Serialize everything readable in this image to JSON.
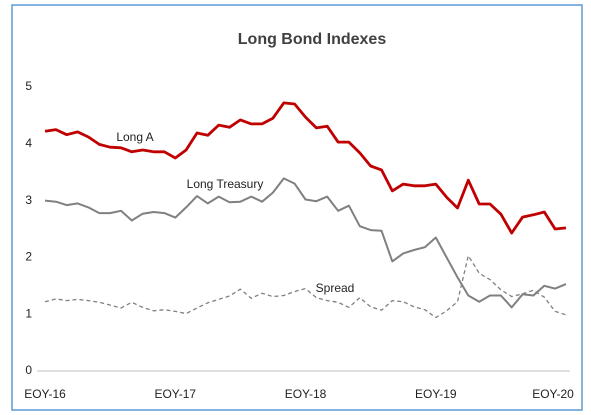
{
  "chart_data": {
    "type": "line",
    "title": "Long Bond Indexes",
    "categories": [
      "EOY-16",
      null,
      null,
      null,
      null,
      null,
      null,
      null,
      null,
      null,
      null,
      null,
      "EOY-17",
      null,
      null,
      null,
      null,
      null,
      null,
      null,
      null,
      null,
      null,
      null,
      "EOY-18",
      null,
      null,
      null,
      null,
      null,
      null,
      null,
      null,
      null,
      null,
      null,
      "EOY-19",
      null,
      null,
      null,
      null,
      null,
      null,
      null,
      null,
      null,
      null,
      null,
      "EOY-20"
    ],
    "series": [
      {
        "name": "Long A",
        "color": "#c00000",
        "style": "solid",
        "values": [
          4.22,
          4.25,
          4.16,
          4.21,
          4.12,
          3.99,
          3.94,
          3.93,
          3.86,
          3.89,
          3.86,
          3.86,
          3.75,
          3.89,
          4.19,
          4.15,
          4.33,
          4.29,
          4.42,
          4.35,
          4.35,
          4.45,
          4.72,
          4.7,
          4.47,
          4.28,
          4.31,
          4.03,
          4.03,
          3.84,
          3.61,
          3.54,
          3.17,
          3.29,
          3.26,
          3.26,
          3.29,
          3.06,
          2.87,
          3.36,
          2.94,
          2.94,
          2.76,
          2.43,
          2.71,
          2.75,
          2.8,
          2.5,
          2.52
        ]
      },
      {
        "name": "Long Treasury",
        "color": "#808080",
        "style": "solid",
        "values": [
          3.0,
          2.98,
          2.92,
          2.95,
          2.88,
          2.78,
          2.78,
          2.82,
          2.65,
          2.77,
          2.8,
          2.78,
          2.7,
          2.88,
          3.08,
          2.95,
          3.07,
          2.97,
          2.98,
          3.07,
          2.98,
          3.14,
          3.39,
          3.3,
          3.02,
          2.99,
          3.07,
          2.82,
          2.91,
          2.55,
          2.48,
          2.47,
          1.93,
          2.07,
          2.13,
          2.18,
          2.35,
          2.0,
          1.65,
          1.33,
          1.22,
          1.33,
          1.33,
          1.12,
          1.35,
          1.33,
          1.5,
          1.45,
          1.53
        ]
      },
      {
        "name": "Spread",
        "color": "#808080",
        "style": "dashed",
        "values": [
          1.22,
          1.27,
          1.24,
          1.26,
          1.24,
          1.21,
          1.16,
          1.11,
          1.21,
          1.12,
          1.06,
          1.08,
          1.05,
          1.01,
          1.11,
          1.2,
          1.26,
          1.32,
          1.44,
          1.28,
          1.37,
          1.31,
          1.33,
          1.4,
          1.45,
          1.29,
          1.24,
          1.21,
          1.12,
          1.29,
          1.13,
          1.07,
          1.24,
          1.22,
          1.13,
          1.08,
          0.94,
          1.06,
          1.22,
          2.03,
          1.72,
          1.61,
          1.43,
          1.31,
          1.36,
          1.42,
          1.3,
          1.05,
          0.99
        ]
      }
    ],
    "ylim": [
      0,
      5
    ],
    "yticks": [
      0,
      1,
      2,
      3,
      4,
      5
    ],
    "grid": false
  }
}
